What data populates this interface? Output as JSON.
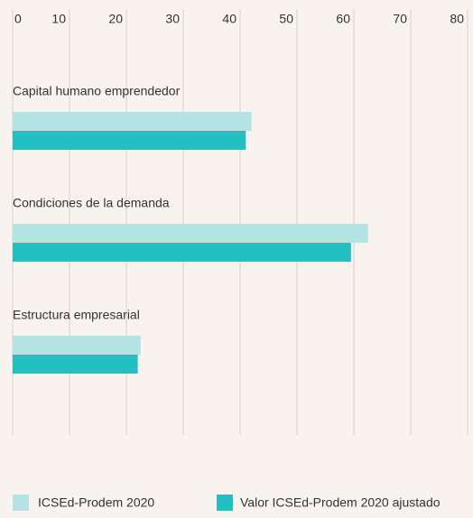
{
  "chart_data": {
    "type": "barh",
    "categories": [
      "Capital humano emprendedor",
      "Condiciones de la demanda",
      "Estructura empresarial"
    ],
    "series": [
      {
        "name": "ICSEd-Prodem 2020",
        "color": "#b3e3e3",
        "values": [
          42,
          62.5,
          22.5
        ]
      },
      {
        "name": "Valor ICSEd-Prodem 2020 ajustado",
        "color": "#22c0c3",
        "values": [
          41,
          59.5,
          22
        ]
      }
    ],
    "xlim": [
      0,
      80
    ],
    "xticks": [
      0,
      10,
      20,
      30,
      40,
      50,
      60,
      70,
      80
    ],
    "grid": true
  }
}
